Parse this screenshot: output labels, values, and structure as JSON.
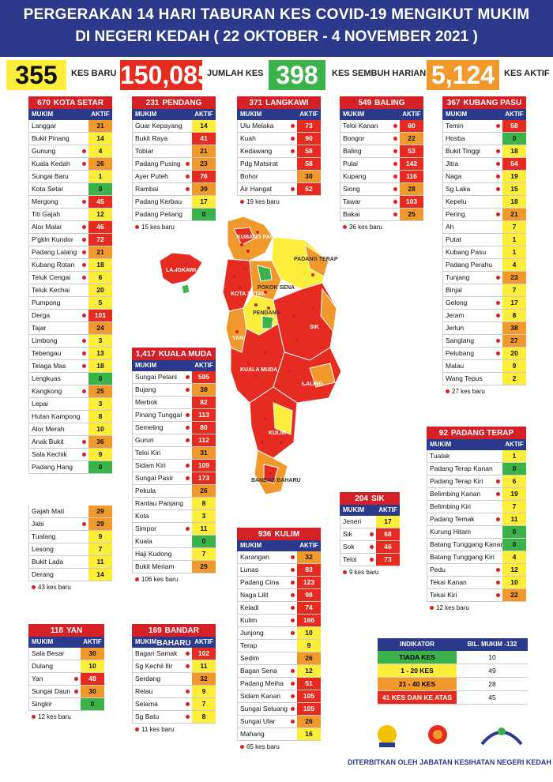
{
  "title": {
    "line1": "PERGERAKAN 14 HARI TABURAN KES COVID-19 MENGIKUT MUKIM",
    "line2": "DI NEGERI KEDAH ( 22 OKTOBER - 4 NOVEMBER 2021 )"
  },
  "summary": [
    {
      "value": "355",
      "label": "KES BARU",
      "color": "#fcee3a"
    },
    {
      "value": "150,085",
      "label": "JUMLAH KES",
      "color": "#e62c20"
    },
    {
      "value": "398",
      "label": "KES SEMBUH HARIAN",
      "color": "#3bb34a"
    },
    {
      "value": "5,124",
      "label": "KES AKTIF",
      "color": "#f2992e"
    }
  ],
  "colors": {
    "red": "#e62c20",
    "orange": "#f2992e",
    "yellow": "#fcee3a",
    "green": "#3bb34a",
    "navy": "#2c3a8c"
  },
  "col_headers": {
    "mukim": "MUKIM",
    "aktif": "AKTIF"
  },
  "districts": {
    "kota_setar": {
      "count": "670",
      "name": "KOTA SETAR",
      "rows": [
        {
          "m": "Langgar",
          "a": "31",
          "dot": false
        },
        {
          "m": "Bukit Pinang",
          "a": "14",
          "dot": false
        },
        {
          "m": "Gunung",
          "a": "4",
          "dot": true
        },
        {
          "m": "Kuala Kedah",
          "a": "26",
          "dot": true
        },
        {
          "m": "Sungai Baru",
          "a": "1",
          "dot": false
        },
        {
          "m": "Kota Setar",
          "a": "0",
          "dot": false
        },
        {
          "m": "Mergong",
          "a": "45",
          "dot": true
        },
        {
          "m": "Titi Gajah",
          "a": "12",
          "dot": false
        },
        {
          "m": "Alor Malai",
          "a": "46",
          "dot": true
        },
        {
          "m": "P'gkln Kundor",
          "a": "72",
          "dot": true
        },
        {
          "m": "Padang Lalang",
          "a": "21",
          "dot": true
        },
        {
          "m": "Kubang Rotan",
          "a": "18",
          "dot": true
        },
        {
          "m": "Teluk Cengai",
          "a": "6",
          "dot": true
        },
        {
          "m": "Teluk Kechai",
          "a": "20",
          "dot": false
        },
        {
          "m": "Pumpong",
          "a": "5",
          "dot": false
        },
        {
          "m": "Derga",
          "a": "101",
          "dot": true
        },
        {
          "m": "Tajar",
          "a": "24",
          "dot": false
        },
        {
          "m": "Limbong",
          "a": "3",
          "dot": true
        },
        {
          "m": "Tebengau",
          "a": "13",
          "dot": true
        },
        {
          "m": "Telaga Mas",
          "a": "18",
          "dot": true
        },
        {
          "m": "Lengkuas",
          "a": "0",
          "dot": false
        },
        {
          "m": "Kangkong",
          "a": "25",
          "dot": true
        },
        {
          "m": "Lepai",
          "a": "3",
          "dot": false
        },
        {
          "m": "Hutan Kampong",
          "a": "8",
          "dot": false
        },
        {
          "m": "Alor Merah",
          "a": "10",
          "dot": false
        },
        {
          "m": "Anak Bukit",
          "a": "36",
          "dot": true
        },
        {
          "m": "Sala Kechik",
          "a": "9",
          "dot": true
        },
        {
          "m": "Padang Hang",
          "a": "0",
          "dot": false
        }
      ],
      "rows2": [
        {
          "m": "Gajah Mati",
          "a": "29",
          "dot": false
        },
        {
          "m": "Jabi",
          "a": "29",
          "dot": true
        },
        {
          "m": "Tualang",
          "a": "9",
          "dot": false
        },
        {
          "m": "Lesong",
          "a": "7",
          "dot": false
        },
        {
          "m": "Bukit Lada",
          "a": "11",
          "dot": false
        },
        {
          "m": "Derang",
          "a": "14",
          "dot": false
        }
      ],
      "note": "43 kes baru"
    },
    "pendang": {
      "count": "231",
      "name": "PENDANG",
      "rows": [
        {
          "m": "Guar Kepayang",
          "a": "14",
          "dot": false
        },
        {
          "m": "Bukit Raya",
          "a": "41",
          "dot": false
        },
        {
          "m": "Tobiar",
          "a": "21",
          "dot": false
        },
        {
          "m": "Padang Pusing",
          "a": "23",
          "dot": true
        },
        {
          "m": "Ayer Puteh",
          "a": "76",
          "dot": true
        },
        {
          "m": "Rambai",
          "a": "39",
          "dot": true
        },
        {
          "m": "Padang Kerbau",
          "a": "17",
          "dot": false
        },
        {
          "m": "Padang Peliang",
          "a": "0",
          "dot": false
        }
      ],
      "note": "15 kes baru"
    },
    "langkawi": {
      "count": "371",
      "name": "LANGKAWI",
      "rows": [
        {
          "m": "Ulu Melaka",
          "a": "73",
          "dot": true
        },
        {
          "m": "Kuah",
          "a": "90",
          "dot": true
        },
        {
          "m": "Kedawang",
          "a": "58",
          "dot": true
        },
        {
          "m": "Pdg Matsirat",
          "a": "58",
          "dot": false
        },
        {
          "m": "Bohor",
          "a": "30",
          "dot": false
        },
        {
          "m": "Air Hangat",
          "a": "62",
          "dot": true
        }
      ],
      "note": "19 kes baru"
    },
    "baling": {
      "count": "549",
      "name": "BALING",
      "rows": [
        {
          "m": "Teloi Kanan",
          "a": "60",
          "dot": true
        },
        {
          "m": "Bongor",
          "a": "22",
          "dot": true
        },
        {
          "m": "Baling",
          "a": "53",
          "dot": true
        },
        {
          "m": "Pulai",
          "a": "142",
          "dot": true
        },
        {
          "m": "Kupang",
          "a": "116",
          "dot": true
        },
        {
          "m": "Siong",
          "a": "28",
          "dot": true
        },
        {
          "m": "Tawar",
          "a": "103",
          "dot": true
        },
        {
          "m": "Bakai",
          "a": "25",
          "dot": true
        }
      ],
      "note": "36 kes baru"
    },
    "kubang_pasu": {
      "count": "367",
      "name": "KUBANG PASU",
      "rows": [
        {
          "m": "Temin",
          "a": "58",
          "dot": true
        },
        {
          "m": "Hosba",
          "a": "0",
          "dot": false
        },
        {
          "m": "Bukit Tinggi",
          "a": "18",
          "dot": true
        },
        {
          "m": "Jitra",
          "a": "54",
          "dot": true
        },
        {
          "m": "Naga",
          "a": "19",
          "dot": true
        },
        {
          "m": "Sg Laka",
          "a": "15",
          "dot": true
        },
        {
          "m": "Kepelu",
          "a": "18",
          "dot": false
        },
        {
          "m": "Pering",
          "a": "21",
          "dot": true
        },
        {
          "m": "Ah",
          "a": "7",
          "dot": false
        },
        {
          "m": "Putat",
          "a": "1",
          "dot": false
        },
        {
          "m": "Kubang Pasu",
          "a": "1",
          "dot": false
        },
        {
          "m": "Padang Perahu",
          "a": "4",
          "dot": false
        },
        {
          "m": "Tunjang",
          "a": "23",
          "dot": true
        },
        {
          "m": "Binjal",
          "a": "7",
          "dot": false
        },
        {
          "m": "Gelong",
          "a": "17",
          "dot": true
        },
        {
          "m": "Jeram",
          "a": "8",
          "dot": true
        },
        {
          "m": "Jerlun",
          "a": "38",
          "dot": false
        },
        {
          "m": "Sanglang",
          "a": "27",
          "dot": true
        },
        {
          "m": "Pelubang",
          "a": "20",
          "dot": true
        },
        {
          "m": "Malau",
          "a": "9",
          "dot": false
        },
        {
          "m": "Wang Tepus",
          "a": "2",
          "dot": false
        }
      ],
      "note": "27 kes baru"
    },
    "kuala_muda": {
      "count": "1,417",
      "name": "KUALA MUDA",
      "rows": [
        {
          "m": "Sungai Petani",
          "a": "595",
          "dot": true
        },
        {
          "m": "Bujang",
          "a": "38",
          "dot": true
        },
        {
          "m": "Merbok",
          "a": "82",
          "dot": false
        },
        {
          "m": "Pinang Tunggal",
          "a": "113",
          "dot": true
        },
        {
          "m": "Semeling",
          "a": "80",
          "dot": true
        },
        {
          "m": "Gurun",
          "a": "112",
          "dot": true
        },
        {
          "m": "Teloi Kiri",
          "a": "31",
          "dot": false
        },
        {
          "m": "Sidam Kiri",
          "a": "109",
          "dot": true
        },
        {
          "m": "Sungai Pasir",
          "a": "173",
          "dot": true
        },
        {
          "m": "Pekula",
          "a": "26",
          "dot": false
        },
        {
          "m": "Rantau Panjang",
          "a": "8",
          "dot": false
        },
        {
          "m": "Kota",
          "a": "3",
          "dot": false
        },
        {
          "m": "Simpor",
          "a": "11",
          "dot": true
        },
        {
          "m": "Kuala",
          "a": "0",
          "dot": false
        },
        {
          "m": "Haji Kudong",
          "a": "7",
          "dot": false
        },
        {
          "m": "Bukit Meriam",
          "a": "29",
          "dot": false
        }
      ],
      "note": "106 kes baru"
    },
    "padang_terap": {
      "count": "92",
      "name": "PADANG TERAP",
      "rows": [
        {
          "m": "Tualak",
          "a": "1",
          "dot": false
        },
        {
          "m": "Padang Terap Kanan",
          "a": "0",
          "dot": false
        },
        {
          "m": "Padang Terap Kiri",
          "a": "6",
          "dot": true
        },
        {
          "m": "Belimbing Kanan",
          "a": "19",
          "dot": true
        },
        {
          "m": "Belimbing Kiri",
          "a": "7",
          "dot": false
        },
        {
          "m": "Padang Temak",
          "a": "11",
          "dot": true
        },
        {
          "m": "Kurung Hitam",
          "a": "0",
          "dot": false
        },
        {
          "m": "Batang Tunggang Kanan",
          "a": "0",
          "dot": false
        },
        {
          "m": "Batang Tunggang Kiri",
          "a": "4",
          "dot": false
        },
        {
          "m": "Pedu",
          "a": "12",
          "dot": true
        },
        {
          "m": "Tekai Kanan",
          "a": "10",
          "dot": true
        },
        {
          "m": "Tekai Kiri",
          "a": "22",
          "dot": true
        }
      ],
      "note": "12 kes baru"
    },
    "sik": {
      "count": "204",
      "name": "SIK",
      "rows": [
        {
          "m": "Jeneri",
          "a": "17",
          "dot": false
        },
        {
          "m": "Sik",
          "a": "68",
          "dot": true
        },
        {
          "m": "Sok",
          "a": "46",
          "dot": true
        },
        {
          "m": "Teloi",
          "a": "73",
          "dot": true
        }
      ],
      "note": "9 kes baru"
    },
    "kulim": {
      "count": "936",
      "name": "KULIM",
      "rows": [
        {
          "m": "Karangan",
          "a": "32",
          "dot": true
        },
        {
          "m": "Lunas",
          "a": "83",
          "dot": true
        },
        {
          "m": "Padang Cina",
          "a": "123",
          "dot": true
        },
        {
          "m": "Naga Lilit",
          "a": "98",
          "dot": true
        },
        {
          "m": "Keladi",
          "a": "74",
          "dot": true
        },
        {
          "m": "Kulim",
          "a": "166",
          "dot": true
        },
        {
          "m": "Junjong",
          "a": "10",
          "dot": true
        },
        {
          "m": "Terap",
          "a": "9",
          "dot": false
        },
        {
          "m": "Sedim",
          "a": "26",
          "dot": false
        },
        {
          "m": "Bagan Sena",
          "a": "12",
          "dot": true
        },
        {
          "m": "Padang Meiha",
          "a": "51",
          "dot": true
        },
        {
          "m": "Sidam Kanan",
          "a": "105",
          "dot": true
        },
        {
          "m": "Sungai Seluang",
          "a": "105",
          "dot": true
        },
        {
          "m": "Sungai Ular",
          "a": "26",
          "dot": true
        },
        {
          "m": "Mahang",
          "a": "16",
          "dot": false
        }
      ],
      "note": "65 kes baru"
    },
    "yan": {
      "count": "118",
      "name": "YAN",
      "rows": [
        {
          "m": "Sala Besar",
          "a": "30",
          "dot": false
        },
        {
          "m": "Dulang",
          "a": "10",
          "dot": false
        },
        {
          "m": "Yan",
          "a": "48",
          "dot": true
        },
        {
          "m": "Sungai Daun",
          "a": "30",
          "dot": true
        },
        {
          "m": "Singkir",
          "a": "0",
          "dot": false
        }
      ],
      "note": "12 kes baru"
    },
    "bandar_baharu": {
      "count": "169",
      "name": "BANDAR BAHARU",
      "rows": [
        {
          "m": "Bagan Samak",
          "a": "102",
          "dot": true
        },
        {
          "m": "Sg Kechil Ilir",
          "a": "11",
          "dot": true
        },
        {
          "m": "Serdang",
          "a": "32",
          "dot": false
        },
        {
          "m": "Relau",
          "a": "9",
          "dot": true
        },
        {
          "m": "Selama",
          "a": "7",
          "dot": true
        },
        {
          "m": "Sg Batu",
          "a": "8",
          "dot": true
        }
      ],
      "note": "11 kes baru"
    }
  },
  "map_labels": {
    "kubang_pasu": "KUBANG PASU",
    "padang_terap": "PADANG TERAP",
    "langkawi": "LANGKAWI",
    "pokok_sena": "POKOK SENA",
    "kota_setar": "KOTA SETAR",
    "pendang": "PENDANG",
    "yan": "YAN",
    "sik": "SIK",
    "kuala_muda": "KUALA MUDA",
    "baling": "BALING",
    "kulim": "KULIM",
    "bandar_baharu": "BANDAR BAHARU"
  },
  "legend": {
    "header_k": "INDIKATOR",
    "header_v": "BIL. MUKIM -132",
    "rows": [
      {
        "k": "TIADA KES",
        "v": "10",
        "color": "#3bb34a"
      },
      {
        "k": "1 - 20 KES",
        "v": "49",
        "color": "#fcee3a"
      },
      {
        "k": "21 - 40 KES",
        "v": "28",
        "color": "#f2992e"
      },
      {
        "k": "41 KES DAN KE ATAS",
        "v": "45",
        "color": "#e62c20"
      }
    ]
  },
  "footer": "DITERBITKAN OLEH JABATAN KESIHATAN NEGERI KEDAH"
}
